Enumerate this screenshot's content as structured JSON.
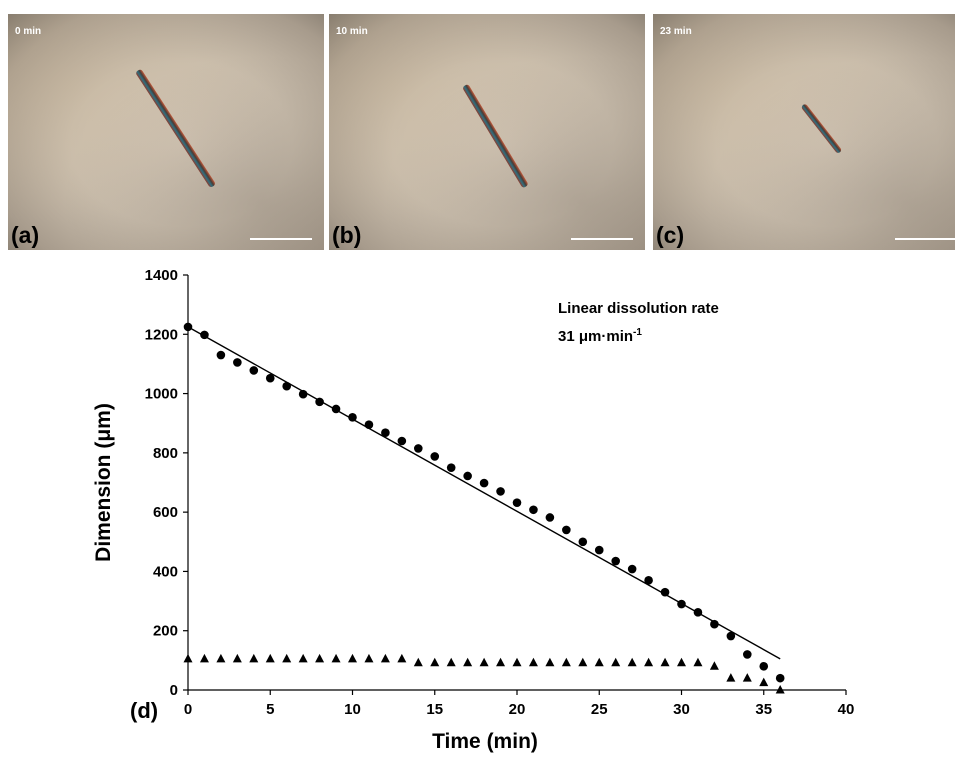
{
  "panels": [
    {
      "id": "a",
      "time_label": "0 min",
      "panel_label": "(a)"
    },
    {
      "id": "b",
      "time_label": "10 min",
      "panel_label": "(b)"
    },
    {
      "id": "c",
      "time_label": "23 min",
      "panel_label": "(c)"
    }
  ],
  "chart_data": {
    "type": "scatter",
    "panel_label": "(d)",
    "xlabel": "Time (min)",
    "ylabel": "Dimension (μm)",
    "xlim": [
      0,
      40
    ],
    "ylim": [
      0,
      1400
    ],
    "x_ticks": [
      "0",
      "5",
      "10",
      "15",
      "20",
      "25",
      "30",
      "35",
      "40"
    ],
    "y_ticks": [
      "0",
      "200",
      "400",
      "600",
      "800",
      "1000",
      "1200",
      "1400"
    ],
    "annotation": {
      "line1": "Linear dissolution rate",
      "line2": "31 μm·min",
      "line2_sup": "-1"
    },
    "grid": false,
    "series": [
      {
        "marker": "circle",
        "x": [
          0,
          1,
          2,
          3,
          4,
          5,
          6,
          7,
          8,
          9,
          10,
          11,
          12,
          13,
          14,
          15,
          16,
          17,
          18,
          19,
          20,
          21,
          22,
          23,
          24,
          25,
          26,
          27,
          28,
          29,
          30,
          31,
          32,
          33,
          34,
          35,
          36
        ],
        "y": [
          1225,
          1198,
          1130,
          1105,
          1078,
          1052,
          1025,
          998,
          972,
          948,
          920,
          895,
          868,
          840,
          815,
          788,
          750,
          722,
          698,
          670,
          632,
          608,
          582,
          540,
          500,
          472,
          435,
          408,
          370,
          330,
          290,
          262,
          222,
          182,
          120,
          80,
          40
        ]
      },
      {
        "marker": "triangle",
        "x": [
          0,
          1,
          2,
          3,
          4,
          5,
          6,
          7,
          8,
          9,
          10,
          11,
          12,
          13,
          14,
          15,
          16,
          17,
          18,
          19,
          20,
          21,
          22,
          23,
          24,
          25,
          26,
          27,
          28,
          29,
          30,
          31,
          32,
          33,
          34,
          35,
          36
        ],
        "y": [
          105,
          105,
          105,
          105,
          105,
          105,
          105,
          105,
          105,
          105,
          105,
          105,
          105,
          105,
          92,
          92,
          92,
          92,
          92,
          92,
          92,
          92,
          92,
          92,
          92,
          92,
          92,
          92,
          92,
          92,
          92,
          92,
          80,
          40,
          40,
          25,
          0
        ]
      }
    ],
    "fit_line": {
      "x": [
        0,
        36
      ],
      "y": [
        1225,
        105
      ]
    }
  }
}
